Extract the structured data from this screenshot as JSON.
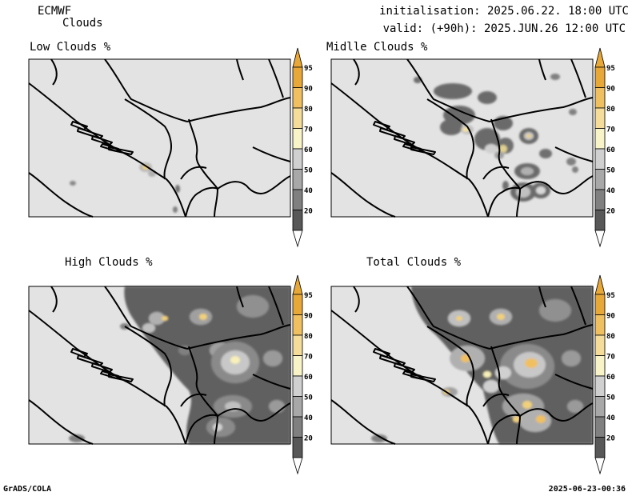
{
  "header": {
    "model": "ECMWF",
    "product": "Clouds",
    "init": "initialisation: 2025.06.22. 18:00 UTC",
    "valid": "valid: (+90h): 2025.JUN.26 12:00 UTC"
  },
  "panels": [
    {
      "title": "Low Clouds %"
    },
    {
      "title": "Midlle Clouds %"
    },
    {
      "title": "High Clouds %"
    },
    {
      "title": "Total Clouds %"
    }
  ],
  "colorbar": {
    "levels": [
      "95",
      "90",
      "80",
      "70",
      "60",
      "50",
      "40",
      "20"
    ],
    "colors": [
      "#e8a838",
      "#f0c060",
      "#f5dc98",
      "#f8f4c8",
      "#d0d0d0",
      "#a8a8a8",
      "#808080",
      "#585858"
    ]
  },
  "footer": {
    "left": "GrADS/COLA",
    "right": "2025-06-23-00:36"
  }
}
